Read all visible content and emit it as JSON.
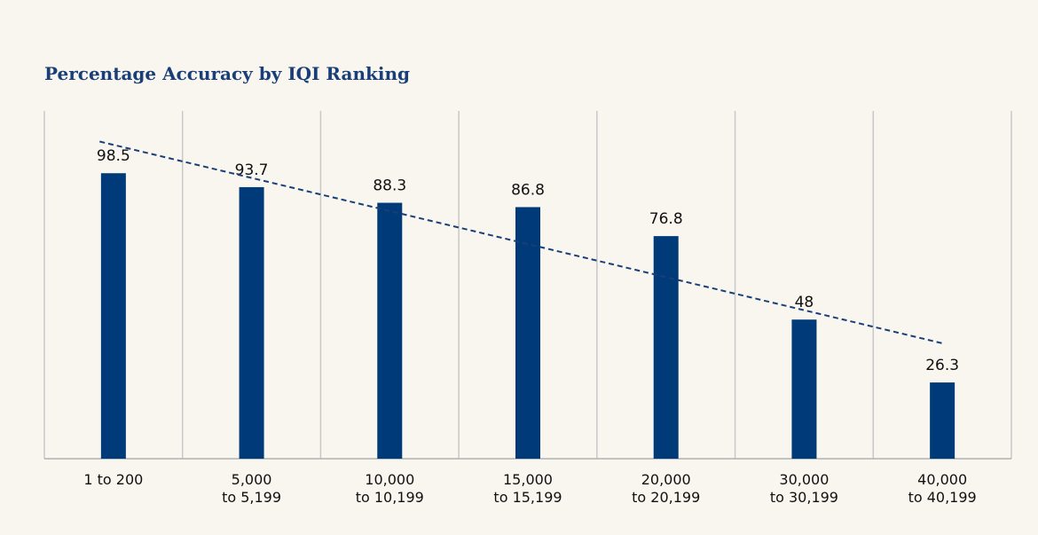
{
  "chart_data": {
    "type": "bar",
    "title": "Percentage Accuracy by IQI Ranking",
    "categories": [
      "1 to 200",
      "5,000\nto 5,199",
      "10,000\nto 10,199",
      "15,000\nto 15,199",
      "20,000\nto 20,199",
      "30,000\nto 30,199",
      "40,000\nto 40,199"
    ],
    "values": [
      98.5,
      93.7,
      88.3,
      86.8,
      76.8,
      48,
      26.3
    ],
    "color": "#003a78",
    "ylim": [
      0,
      120
    ],
    "grid": true,
    "trendline": true
  }
}
